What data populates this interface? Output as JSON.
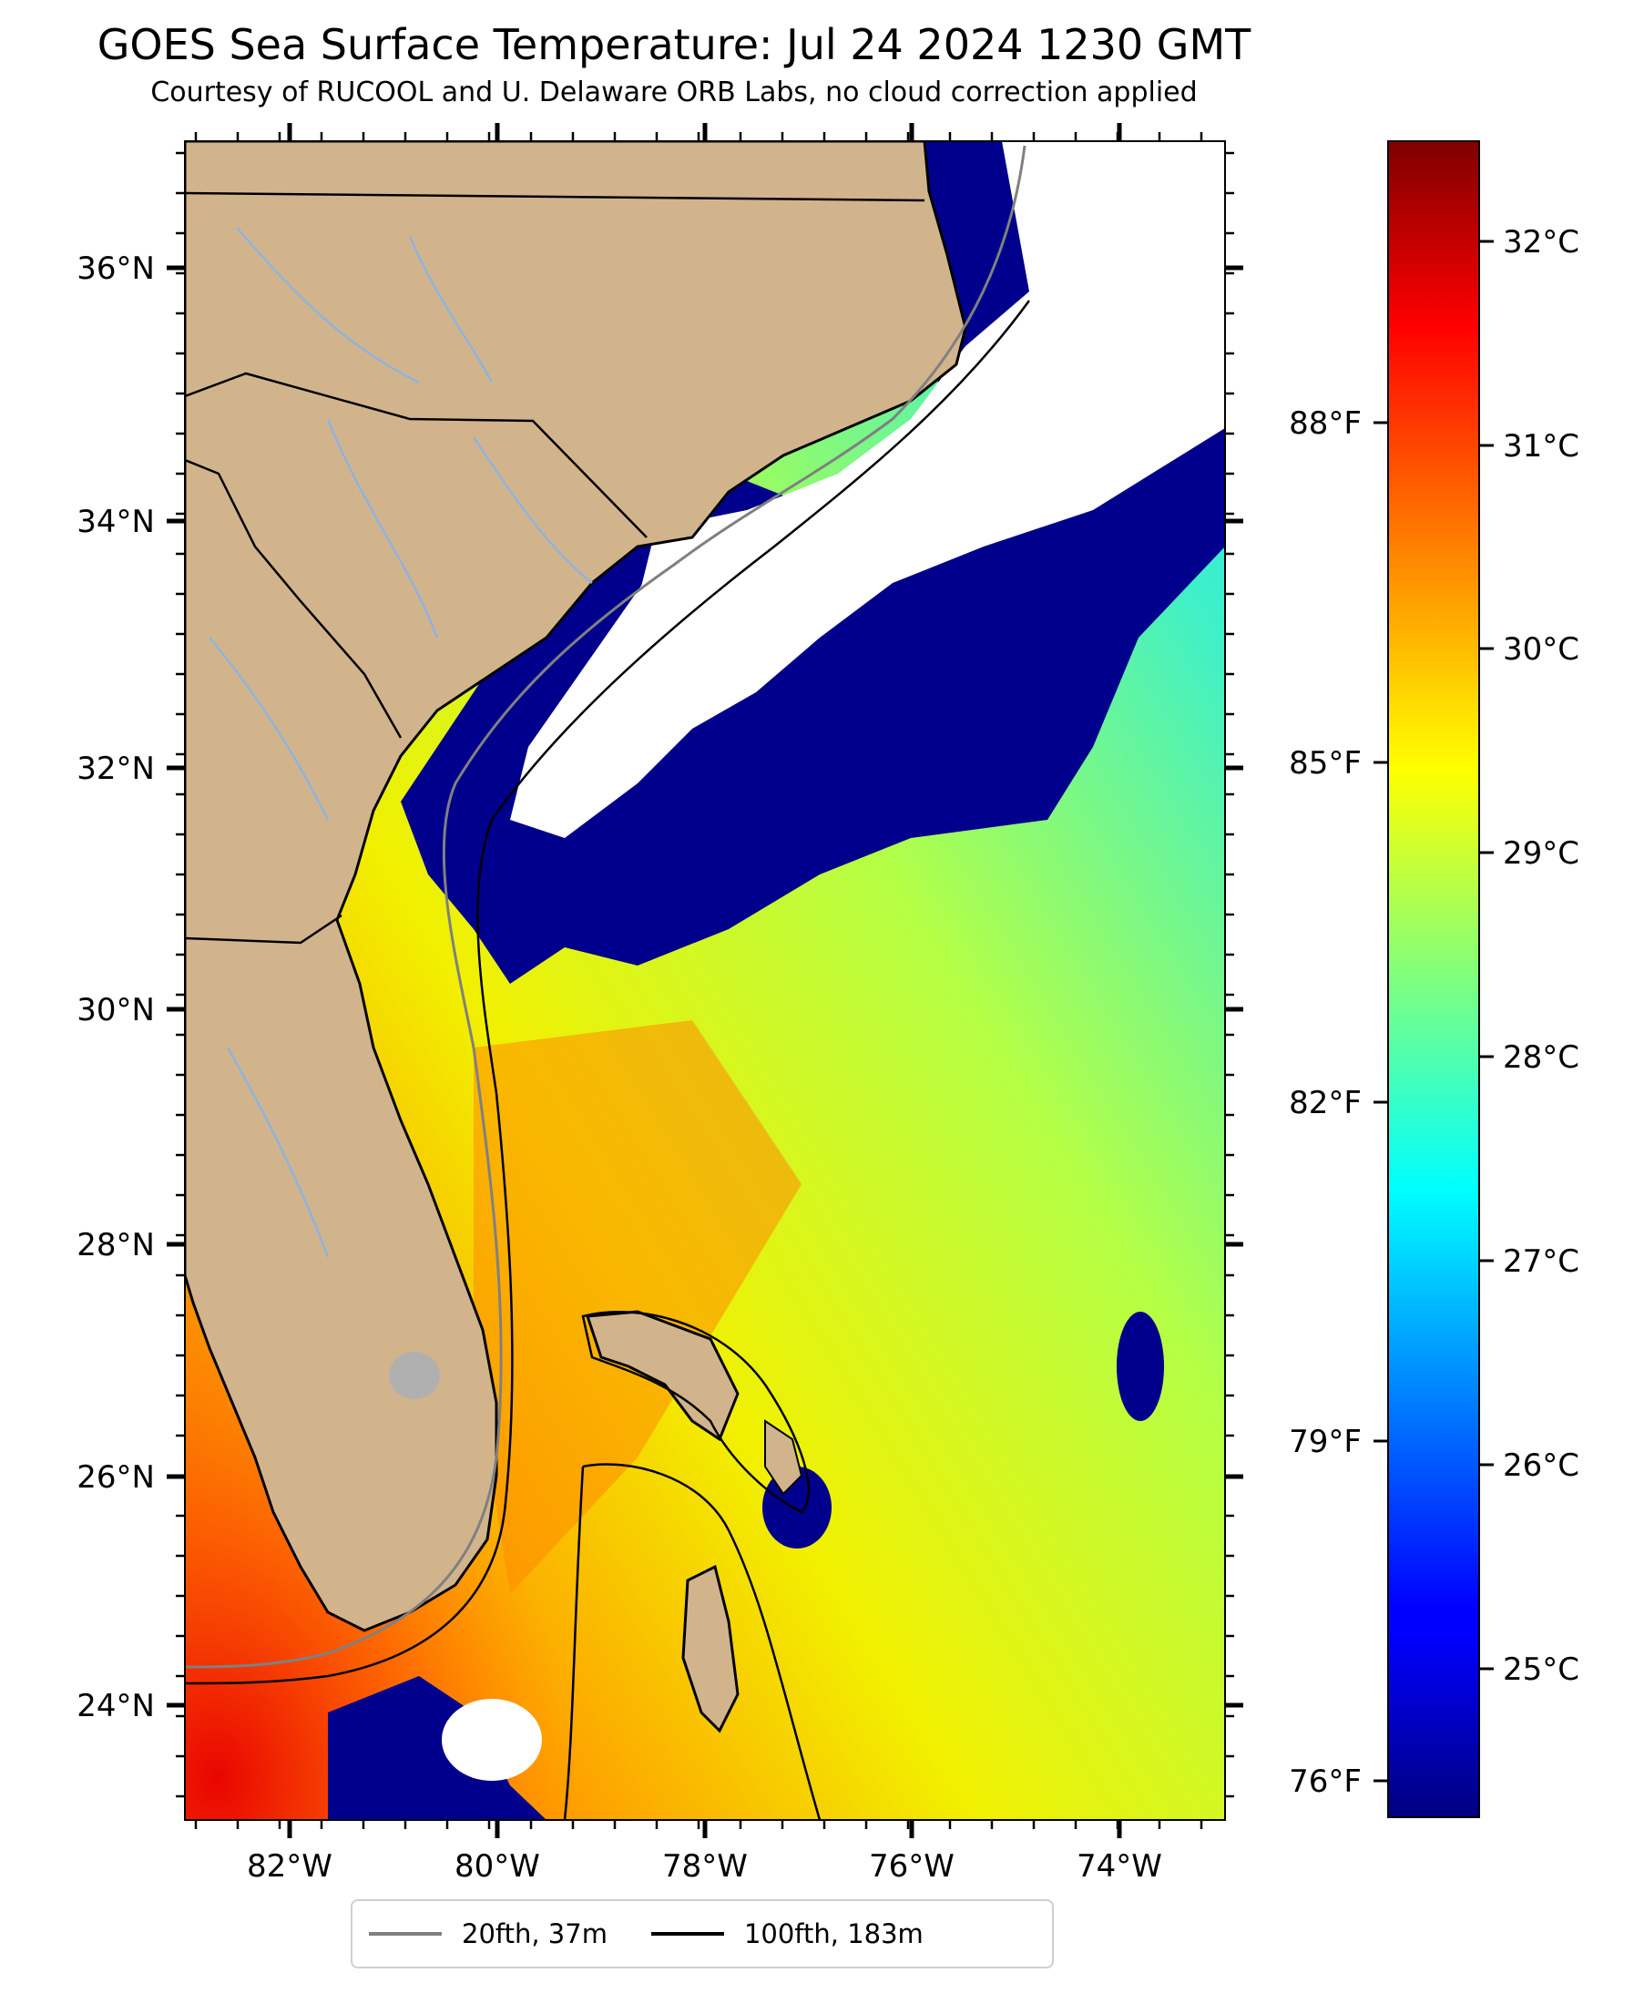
{
  "header": {
    "title": "GOES Sea Surface Temperature: Jul 24 2024 1230 GMT",
    "subtitle": "Courtesy of RUCOOL and U. Delaware ORB Labs, no cloud correction applied"
  },
  "map": {
    "lat_ticks": [
      "36°N",
      "34°N",
      "32°N",
      "30°N",
      "28°N",
      "26°N",
      "24°N"
    ],
    "lon_ticks": [
      "82°W",
      "80°W",
      "78°W",
      "76°W",
      "74°W"
    ],
    "colors": {
      "land": "#d2b48c",
      "cloud": "#ffffff",
      "rivers": "#8fb3df",
      "borders": "#000000",
      "lake": "#b0b0b0"
    }
  },
  "colorbar": {
    "celsius_labels": [
      "32°C",
      "31°C",
      "30°C",
      "29°C",
      "28°C",
      "27°C",
      "26°C",
      "25°C"
    ],
    "fahrenheit_labels": [
      "88°F",
      "85°F",
      "82°F",
      "79°F",
      "76°F"
    ],
    "colormap": "jet"
  },
  "legend": {
    "items": [
      {
        "label": "20fth, 37m",
        "color": "#808080"
      },
      {
        "label": "100fth, 183m",
        "color": "#000000"
      }
    ]
  }
}
